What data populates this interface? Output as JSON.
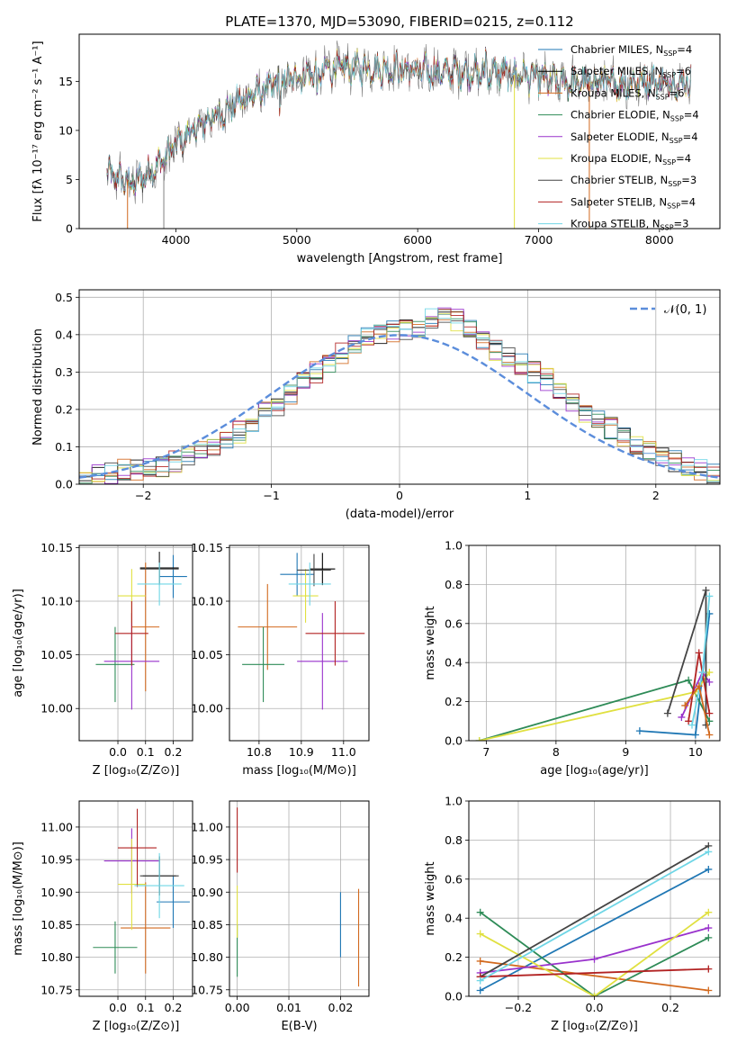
{
  "figure_title": "PLATE=1370, MJD=53090, FIBERID=0215, z=0.112",
  "models": [
    {
      "name": "Chabrier MILES",
      "nssp": "4",
      "color": "#1f77b4"
    },
    {
      "name": "Salpeter MILES",
      "nssp": "6",
      "color": "#000000"
    },
    {
      "name": "Kroupa MILES",
      "nssp": "6",
      "color": "#d2691e"
    },
    {
      "name": "Chabrier ELODIE",
      "nssp": "4",
      "color": "#2e8b57"
    },
    {
      "name": "Salpeter ELODIE",
      "nssp": "4",
      "color": "#9932cc"
    },
    {
      "name": "Kroupa ELODIE",
      "nssp": "4",
      "color": "#e0e040"
    },
    {
      "name": "Chabrier STELIB",
      "nssp": "3",
      "color": "#444444"
    },
    {
      "name": "Salpeter STELIB",
      "nssp": "4",
      "color": "#b22222"
    },
    {
      "name": "Kroupa STELIB",
      "nssp": "3",
      "color": "#6fd6e6"
    }
  ],
  "legend_ssp_prefix": "N",
  "legend_ssp_sub": "SSP",
  "chart_data": [
    {
      "id": "spectrum",
      "type": "line",
      "title": "PLATE=1370, MJD=53090, FIBERID=0215, z=0.112",
      "xlabel": "wavelength [Angstrom, rest frame]",
      "ylabel": "Flux [fλ 10⁻¹⁷ erg cm⁻² s⁻¹ A⁻¹]",
      "xlim": [
        3200,
        8500
      ],
      "ylim": [
        0,
        19.8
      ],
      "xticks": [
        4000,
        5000,
        6000,
        7000,
        8000
      ],
      "yticks": [
        0,
        5,
        10,
        15
      ],
      "continuum_x": [
        3430,
        3550,
        3650,
        3750,
        3850,
        3950,
        4050,
        4150,
        4250,
        4350,
        4500,
        4700,
        4900,
        5100,
        5300,
        5500,
        5700,
        5900,
        6100,
        6300,
        6500,
        6700,
        6900,
        7100,
        7300,
        7500,
        7700,
        7900,
        8100,
        8260
      ],
      "continuum_y": [
        5.5,
        5.0,
        4.5,
        5.5,
        6.5,
        7.8,
        9.0,
        10.0,
        11.0,
        11.5,
        12.8,
        14.0,
        15.0,
        15.8,
        16.3,
        16.4,
        16.3,
        16.2,
        16.0,
        16.0,
        15.8,
        15.8,
        15.5,
        15.0,
        14.8,
        15.0,
        14.7,
        15.2,
        14.8,
        15.0
      ],
      "dropouts": [
        {
          "x": 3600,
          "y": 0
        },
        {
          "x": 3900,
          "y": 0
        },
        {
          "x": 6800,
          "y": 0
        },
        {
          "x": 7420,
          "y": 0
        }
      ],
      "legend_loc": "lower right"
    },
    {
      "id": "residuals",
      "type": "histogram",
      "xlabel": "(data-model)/error",
      "ylabel": "Normed distribution",
      "xlim": [
        -2.5,
        2.5
      ],
      "ylim": [
        0,
        0.52
      ],
      "xticks": [
        -2,
        -1,
        0,
        1,
        2
      ],
      "yticks": [
        0,
        0.1,
        0.2,
        0.3,
        0.4,
        0.5
      ],
      "bin_width": 0.1,
      "bin_start": -2.5,
      "base_density": [
        0.02,
        0.03,
        0.03,
        0.04,
        0.04,
        0.05,
        0.05,
        0.06,
        0.08,
        0.09,
        0.1,
        0.12,
        0.14,
        0.16,
        0.19,
        0.21,
        0.24,
        0.27,
        0.3,
        0.32,
        0.35,
        0.37,
        0.39,
        0.4,
        0.41,
        0.41,
        0.42,
        0.44,
        0.45,
        0.44,
        0.42,
        0.39,
        0.36,
        0.34,
        0.32,
        0.3,
        0.28,
        0.25,
        0.22,
        0.19,
        0.17,
        0.15,
        0.13,
        0.11,
        0.09,
        0.07,
        0.06,
        0.05,
        0.04,
        0.03
      ],
      "gaussian_label": "𝒩(0, 1)",
      "legend_loc": "upper right"
    },
    {
      "id": "age_vs_z",
      "type": "errorbar",
      "xlabel": "Z [log₁₀(Z/Z⊙)]",
      "ylabel": "age  [log₁₀(age/yr)]",
      "xlim": [
        -0.14,
        0.27
      ],
      "ylim": [
        9.97,
        10.152
      ],
      "xticks": [
        0.0,
        0.1,
        0.2
      ],
      "yticks": [
        10.0,
        10.05,
        10.1,
        10.15
      ],
      "points": [
        {
          "model": 0,
          "x": 0.2,
          "y": 10.123,
          "xerr": 0.05,
          "yerr": 0.02
        },
        {
          "model": 1,
          "x": 0.15,
          "y": 10.131,
          "xerr": 0.07,
          "yerr": 0.015
        },
        {
          "model": 2,
          "x": 0.1,
          "y": 10.076,
          "xerr": 0.05,
          "yerr": 0.06
        },
        {
          "model": 3,
          "x": -0.01,
          "y": 10.041,
          "xerr": 0.07,
          "yerr": 0.035
        },
        {
          "model": 4,
          "x": 0.05,
          "y": 10.044,
          "xerr": 0.1,
          "yerr": 0.045
        },
        {
          "model": 5,
          "x": 0.05,
          "y": 10.105,
          "xerr": 0.05,
          "yerr": 0.025
        },
        {
          "model": 6,
          "x": 0.15,
          "y": 10.13,
          "xerr": 0.07,
          "yerr": 0.015
        },
        {
          "model": 7,
          "x": 0.05,
          "y": 10.07,
          "xerr": 0.06,
          "yerr": 0.03
        },
        {
          "model": 8,
          "x": 0.15,
          "y": 10.116,
          "xerr": 0.08,
          "yerr": 0.02
        }
      ]
    },
    {
      "id": "age_vs_mass",
      "type": "errorbar",
      "xlabel": "mass [log₁₀(M/M⊙)]",
      "ylabel": "",
      "xlim": [
        10.73,
        11.06
      ],
      "ylim": [
        9.97,
        10.152
      ],
      "xticks": [
        10.8,
        10.9,
        11.0
      ],
      "yticks": [
        10.0,
        10.05,
        10.1,
        10.15
      ],
      "points": [
        {
          "model": 0,
          "x": 10.89,
          "y": 10.125,
          "xerr": 0.04,
          "yerr": 0.02
        },
        {
          "model": 1,
          "x": 10.95,
          "y": 10.13,
          "xerr": 0.03,
          "yerr": 0.015
        },
        {
          "model": 2,
          "x": 10.82,
          "y": 10.076,
          "xerr": 0.07,
          "yerr": 0.04
        },
        {
          "model": 3,
          "x": 10.81,
          "y": 10.041,
          "xerr": 0.05,
          "yerr": 0.035
        },
        {
          "model": 4,
          "x": 10.95,
          "y": 10.044,
          "xerr": 0.06,
          "yerr": 0.045
        },
        {
          "model": 5,
          "x": 10.91,
          "y": 10.105,
          "xerr": 0.03,
          "yerr": 0.025
        },
        {
          "model": 6,
          "x": 10.93,
          "y": 10.129,
          "xerr": 0.04,
          "yerr": 0.015
        },
        {
          "model": 7,
          "x": 10.98,
          "y": 10.07,
          "xerr": 0.07,
          "yerr": 0.03
        },
        {
          "model": 8,
          "x": 10.92,
          "y": 10.116,
          "xerr": 0.05,
          "yerr": 0.02
        }
      ]
    },
    {
      "id": "weight_vs_age",
      "type": "line",
      "xlabel": "age  [log₁₀(age/yr)]",
      "ylabel": "mass weight",
      "xlim": [
        6.75,
        10.35
      ],
      "ylim": [
        0,
        1.0
      ],
      "xticks": [
        7,
        8,
        9,
        10
      ],
      "yticks": [
        0.0,
        0.2,
        0.4,
        0.6,
        0.8,
        1.0
      ],
      "series": [
        {
          "model": 0,
          "x": [
            9.2,
            10.0,
            10.2
          ],
          "y": [
            0.05,
            0.03,
            0.65
          ]
        },
        {
          "model": 3,
          "x": [
            6.9,
            9.9,
            10.2
          ],
          "y": [
            0.0,
            0.31,
            0.1
          ]
        },
        {
          "model": 4,
          "x": [
            9.8,
            10.1,
            10.2
          ],
          "y": [
            0.12,
            0.35,
            0.3
          ]
        },
        {
          "model": 5,
          "x": [
            6.9,
            10.0,
            10.2
          ],
          "y": [
            0.0,
            0.25,
            0.35
          ]
        },
        {
          "model": 6,
          "x": [
            9.6,
            10.15,
            10.15
          ],
          "y": [
            0.14,
            0.77,
            0.08
          ]
        },
        {
          "model": 7,
          "x": [
            9.9,
            10.05,
            10.2
          ],
          "y": [
            0.1,
            0.45,
            0.14
          ]
        },
        {
          "model": 8,
          "x": [
            9.95,
            10.1,
            10.2
          ],
          "y": [
            0.08,
            0.35,
            0.74
          ]
        },
        {
          "model": 2,
          "x": [
            9.85,
            10.05,
            10.2
          ],
          "y": [
            0.18,
            0.28,
            0.03
          ]
        }
      ]
    },
    {
      "id": "mass_vs_z",
      "type": "errorbar",
      "xlabel": "Z [log₁₀(Z/Z⊙)]",
      "ylabel": "mass [log₁₀(M/M⊙)]",
      "xlim": [
        -0.14,
        0.27
      ],
      "ylim": [
        10.74,
        11.04
      ],
      "xticks": [
        0.0,
        0.1,
        0.2
      ],
      "yticks": [
        10.75,
        10.8,
        10.85,
        10.9,
        10.95,
        11.0
      ],
      "points": [
        {
          "model": 0,
          "x": 0.2,
          "y": 10.885,
          "xerr": 0.06,
          "yerr": 0.04
        },
        {
          "model": 1,
          "x": 0.15,
          "y": 10.925,
          "xerr": 0.06,
          "yerr": 0.03
        },
        {
          "model": 2,
          "x": 0.1,
          "y": 10.845,
          "xerr": 0.09,
          "yerr": 0.07
        },
        {
          "model": 3,
          "x": -0.01,
          "y": 10.815,
          "xerr": 0.08,
          "yerr": 0.04
        },
        {
          "model": 4,
          "x": 0.05,
          "y": 10.948,
          "xerr": 0.1,
          "yerr": 0.05
        },
        {
          "model": 5,
          "x": 0.05,
          "y": 10.912,
          "xerr": 0.05,
          "yerr": 0.07
        },
        {
          "model": 6,
          "x": 0.15,
          "y": 10.925,
          "xerr": 0.07,
          "yerr": 0.03
        },
        {
          "model": 7,
          "x": 0.07,
          "y": 10.968,
          "xerr": 0.07,
          "yerr": 0.06
        },
        {
          "model": 8,
          "x": 0.15,
          "y": 10.91,
          "xerr": 0.09,
          "yerr": 0.05
        }
      ]
    },
    {
      "id": "mass_vs_ebv",
      "type": "errorbar",
      "xlabel": "E(B-V)",
      "ylabel": "",
      "xlim": [
        -0.0015,
        0.0255
      ],
      "ylim": [
        10.74,
        11.04
      ],
      "xticks": [
        0.0,
        0.01,
        0.02
      ],
      "yticks": [
        10.75,
        10.8,
        10.85,
        10.9,
        10.95,
        11.0
      ],
      "points": [
        {
          "model": 0,
          "x": 0.02,
          "y": 10.85,
          "xerr": 0.0,
          "yerr": 0.05
        },
        {
          "model": 2,
          "x": 0.0235,
          "y": 10.83,
          "xerr": 0.0,
          "yerr": 0.075
        },
        {
          "model": 3,
          "x": 0.0,
          "y": 10.81,
          "xerr": 0.0,
          "yerr": 0.04
        },
        {
          "model": 5,
          "x": 0.0,
          "y": 10.87,
          "xerr": 0.0,
          "yerr": 0.04
        },
        {
          "model": 7,
          "x": 0.0,
          "y": 10.98,
          "xerr": 0.0,
          "yerr": 0.05
        }
      ]
    },
    {
      "id": "weight_vs_z",
      "type": "line",
      "xlabel": "Z [log₁₀(Z/Z⊙)]",
      "ylabel": "mass weight",
      "xlim": [
        -0.33,
        0.33
      ],
      "ylim": [
        0,
        1.0
      ],
      "xticks": [
        -0.2,
        0.0,
        0.2
      ],
      "yticks": [
        0.0,
        0.2,
        0.4,
        0.6,
        0.8,
        1.0
      ],
      "series": [
        {
          "model": 0,
          "x": [
            -0.3,
            0.3
          ],
          "y": [
            0.03,
            0.65
          ]
        },
        {
          "model": 2,
          "x": [
            -0.3,
            0.3
          ],
          "y": [
            0.18,
            0.03
          ]
        },
        {
          "model": 3,
          "x": [
            -0.3,
            0.0,
            0.3
          ],
          "y": [
            0.43,
            0.0,
            0.3
          ]
        },
        {
          "model": 4,
          "x": [
            -0.3,
            0.0,
            0.3
          ],
          "y": [
            0.12,
            0.19,
            0.35
          ]
        },
        {
          "model": 5,
          "x": [
            -0.3,
            0.0,
            0.3
          ],
          "y": [
            0.32,
            0.0,
            0.43
          ]
        },
        {
          "model": 6,
          "x": [
            -0.3,
            0.3
          ],
          "y": [
            0.1,
            0.77
          ]
        },
        {
          "model": 7,
          "x": [
            -0.3,
            0.3
          ],
          "y": [
            0.1,
            0.14
          ]
        },
        {
          "model": 8,
          "x": [
            -0.3,
            0.3
          ],
          "y": [
            0.08,
            0.74
          ]
        }
      ]
    }
  ]
}
